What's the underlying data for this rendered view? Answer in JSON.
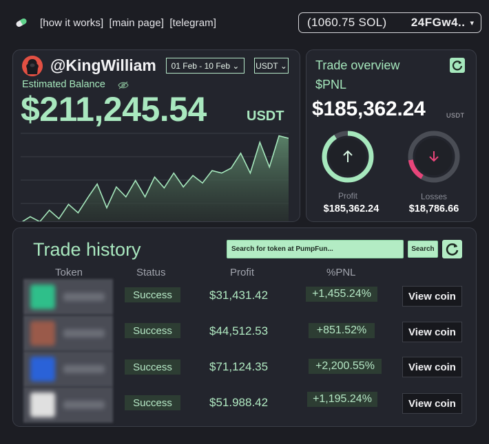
{
  "nav": {
    "links": [
      "[how it works]",
      "[main page]",
      "[telegram]"
    ],
    "wallet_balance": "(1060.75 SOL)",
    "wallet_address": "24FGw4..",
    "caret": "▾"
  },
  "balance": {
    "username": "@KingWilliam",
    "date_range": "01 Feb - 10 Feb ⌄",
    "currency": "USDT ⌄",
    "label": "Estimated Balance",
    "amount": "$211,245.54",
    "unit": "USDT"
  },
  "chart_data": {
    "type": "area",
    "title": "",
    "xlabel": "",
    "ylabel": "",
    "grid": true,
    "y": [
      0,
      12,
      2,
      25,
      8,
      37,
      20,
      50,
      78,
      30,
      72,
      52,
      85,
      52,
      92,
      70,
      100,
      72,
      95,
      80,
      105,
      100,
      110,
      140,
      100,
      162,
      112,
      175,
      170
    ],
    "ylim": [
      0,
      180
    ],
    "colors": {
      "line": "#a6e8bd",
      "fill": "#4d6b57"
    }
  },
  "overview": {
    "title": "Trade overview",
    "pnl_label": "$PNL",
    "pnl_value": "$185,362.24",
    "pnl_unit": "USDT",
    "profit_label": "Profit",
    "profit_value": "$185,362.24",
    "profit_ratio": 0.91,
    "loss_label": "Losses",
    "loss_value": "$18,786.66",
    "loss_ratio": 0.09,
    "colors": {
      "profit": "#a6e8bd",
      "loss": "#e8457a"
    }
  },
  "history": {
    "title": "Trade history",
    "search_placeholder": "Search for token at PumpFun...",
    "search_button": "Search",
    "columns": {
      "token": "Token",
      "status": "Status",
      "profit": "Profit",
      "pnl": "%PNL"
    },
    "rows": [
      {
        "status": "Success",
        "profit": "$31,431.42",
        "pnl": "+1,455.24%",
        "action": "View coin",
        "logo_color": "#2fbf8a"
      },
      {
        "status": "Success",
        "profit": "$44,512.53",
        "pnl": "+851.52%",
        "action": "View coin",
        "logo_color": "#9a5a4a"
      },
      {
        "status": "Success",
        "profit": "$71,124.35",
        "pnl": "+2,200.55%",
        "action": "View coin",
        "logo_color": "#2a62d8"
      },
      {
        "status": "Success",
        "profit": "$51.988.42",
        "pnl": "+1,195.24%",
        "action": "View coin",
        "logo_color": "#e0e0e0"
      }
    ]
  }
}
